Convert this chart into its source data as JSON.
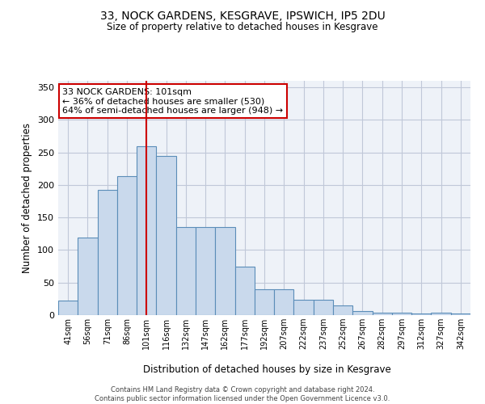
{
  "title_line1": "33, NOCK GARDENS, KESGRAVE, IPSWICH, IP5 2DU",
  "title_line2": "Size of property relative to detached houses in Kesgrave",
  "xlabel": "Distribution of detached houses by size in Kesgrave",
  "ylabel": "Number of detached properties",
  "categories": [
    "41sqm",
    "56sqm",
    "71sqm",
    "86sqm",
    "101sqm",
    "116sqm",
    "132sqm",
    "147sqm",
    "162sqm",
    "177sqm",
    "192sqm",
    "207sqm",
    "222sqm",
    "237sqm",
    "252sqm",
    "267sqm",
    "282sqm",
    "297sqm",
    "312sqm",
    "327sqm",
    "342sqm"
  ],
  "values": [
    22,
    119,
    193,
    214,
    260,
    245,
    135,
    135,
    135,
    75,
    40,
    40,
    23,
    23,
    15,
    6,
    4,
    4,
    3,
    4,
    3
  ],
  "bar_color": "#c9d9ec",
  "bar_edge_color": "#5b8db8",
  "redline_index": 4,
  "annotation_text": "33 NOCK GARDENS: 101sqm\n← 36% of detached houses are smaller (530)\n64% of semi-detached houses are larger (948) →",
  "annotation_box_edge": "#cc0000",
  "annotation_box_bg": "white",
  "redline_color": "#cc0000",
  "ylim": [
    0,
    360
  ],
  "yticks": [
    0,
    50,
    100,
    150,
    200,
    250,
    300,
    350
  ],
  "grid_color": "#c0c8d8",
  "bg_color": "#eef2f8",
  "footer_line1": "Contains HM Land Registry data © Crown copyright and database right 2024.",
  "footer_line2": "Contains public sector information licensed under the Open Government Licence v3.0."
}
